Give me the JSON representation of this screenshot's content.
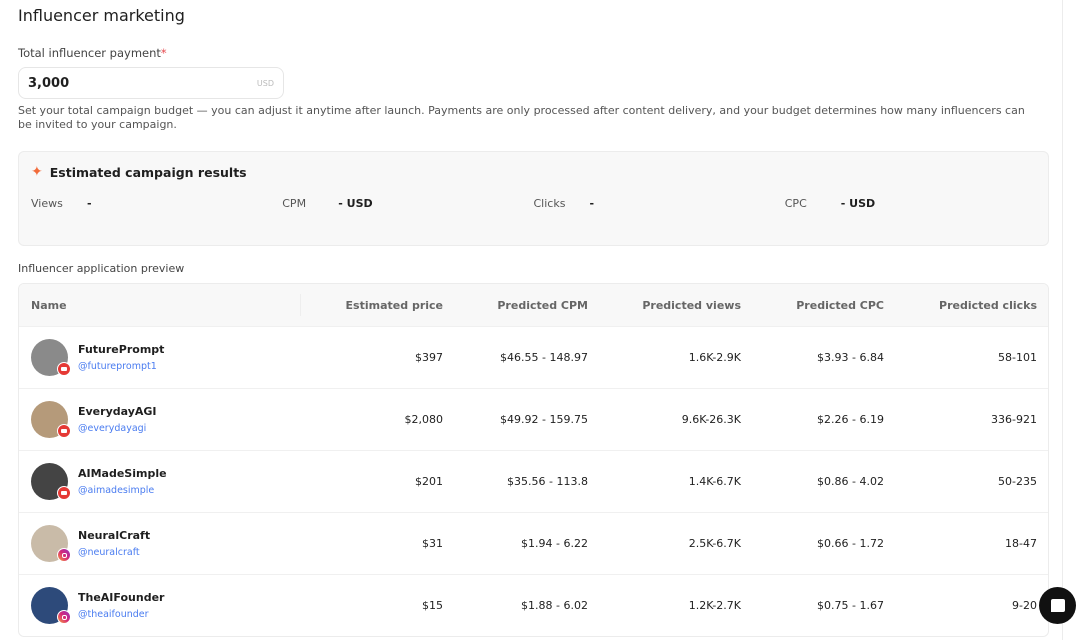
{
  "title": "Influencer marketing",
  "payment": {
    "label": "Total influencer payment",
    "required": "*",
    "value": "3,000",
    "unit": "USD",
    "help": "Set your total campaign budget — you can adjust it anytime after launch. Payments are only processed after content delivery, and your budget determines how many influencers can be invited to your campaign."
  },
  "estimate": {
    "title": "Estimated campaign results",
    "icon": "sparkles-icon",
    "metrics": [
      {
        "label": "Views",
        "value": "-"
      },
      {
        "label": "CPM",
        "value": "- USD"
      },
      {
        "label": "Clicks",
        "value": "-"
      },
      {
        "label": "CPC",
        "value": "- USD"
      }
    ]
  },
  "preview": {
    "title": "Influencer application preview",
    "columns": [
      "Name",
      "Estimated price",
      "Predicted CPM",
      "Predicted views",
      "Predicted CPC",
      "Predicted clicks"
    ],
    "rows": [
      {
        "name": "FuturePrompt",
        "handle": "@futureprompt1",
        "platform": "youtube",
        "price": "$397",
        "cpm": "$46.55 - 148.97",
        "views": "1.6K-2.9K",
        "cpc": "$3.93 - 6.84",
        "clicks": "58-101",
        "avatar": "#8a8a8a"
      },
      {
        "name": "EverydayAGI",
        "handle": "@everydayagi",
        "platform": "youtube",
        "price": "$2,080",
        "cpm": "$49.92 - 159.75",
        "views": "9.6K-26.3K",
        "cpc": "$2.26 - 6.19",
        "clicks": "336-921",
        "avatar": "#b59a7a"
      },
      {
        "name": "AIMadeSimple",
        "handle": "@aimadesimple",
        "platform": "youtube",
        "price": "$201",
        "cpm": "$35.56 - 113.8",
        "views": "1.4K-6.7K",
        "cpc": "$0.86 - 4.02",
        "clicks": "50-235",
        "avatar": "#444444"
      },
      {
        "name": "NeuralCraft",
        "handle": "@neuralcraft",
        "platform": "instagram",
        "price": "$31",
        "cpm": "$1.94 - 6.22",
        "views": "2.5K-6.7K",
        "cpc": "$0.66 - 1.72",
        "clicks": "18-47",
        "avatar": "#c9bba8"
      },
      {
        "name": "TheAIFounder",
        "handle": "@theaifounder",
        "platform": "instagram",
        "price": "$15",
        "cpm": "$1.88 - 6.02",
        "views": "1.2K-2.7K",
        "cpc": "$0.75 - 1.67",
        "clicks": "9-20",
        "avatar": "#2d4a7a"
      }
    ]
  },
  "chat_icon": "chat-icon"
}
